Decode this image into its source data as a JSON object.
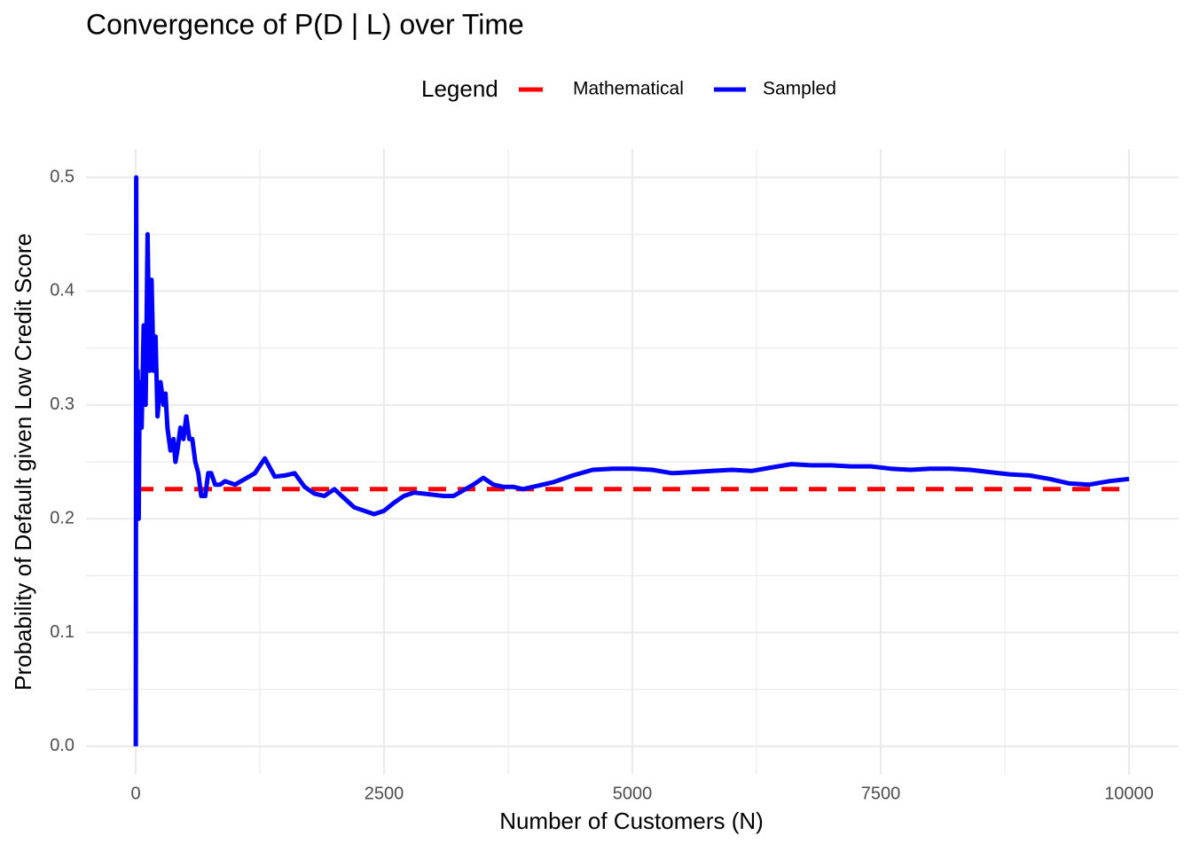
{
  "chart_data": {
    "type": "line",
    "title": "Convergence of P(D | L) over Time",
    "x_label": "Number of Customers (N)",
    "y_label": "Probability of Default given Low Credit Score",
    "legend_title": "Legend",
    "legend_position": "top",
    "grid": true,
    "xlim": [
      -500,
      10500
    ],
    "ylim": [
      -0.025,
      0.525
    ],
    "xticks": [
      0,
      2500,
      5000,
      7500,
      10000
    ],
    "yticks": [
      {
        "value": 0,
        "label": "0.0"
      },
      0.1,
      0.2,
      0.3,
      0.4,
      0.5
    ],
    "series": [
      {
        "name": "Mathematical",
        "color": "#ff0000",
        "linetype": "dashed",
        "x": [
          0,
          10000
        ],
        "values": [
          0.226,
          0.226
        ]
      },
      {
        "name": "Sampled",
        "color": "#0000ff",
        "linetype": "solid",
        "x": [
          1,
          5,
          10,
          20,
          30,
          40,
          60,
          80,
          100,
          120,
          140,
          160,
          180,
          200,
          220,
          250,
          280,
          300,
          320,
          350,
          380,
          400,
          420,
          450,
          480,
          510,
          540,
          570,
          600,
          630,
          660,
          700,
          730,
          760,
          800,
          850,
          900,
          1000,
          1100,
          1200,
          1300,
          1400,
          1500,
          1600,
          1700,
          1800,
          1900,
          2000,
          2100,
          2200,
          2300,
          2400,
          2500,
          2600,
          2700,
          2800,
          2900,
          3000,
          3100,
          3200,
          3300,
          3400,
          3500,
          3600,
          3700,
          3800,
          3900,
          4000,
          4200,
          4400,
          4600,
          4800,
          5000,
          5200,
          5400,
          5600,
          5800,
          6000,
          6200,
          6400,
          6600,
          6800,
          7000,
          7200,
          7400,
          7600,
          7800,
          8000,
          8200,
          8400,
          8600,
          8800,
          9000,
          9200,
          9400,
          9600,
          9800,
          10000
        ],
        "values": [
          0,
          0.5,
          0.2,
          0.33,
          0.2,
          0.32,
          0.28,
          0.37,
          0.3,
          0.45,
          0.33,
          0.41,
          0.33,
          0.36,
          0.29,
          0.32,
          0.3,
          0.31,
          0.28,
          0.26,
          0.27,
          0.25,
          0.26,
          0.28,
          0.27,
          0.29,
          0.27,
          0.27,
          0.25,
          0.24,
          0.22,
          0.22,
          0.24,
          0.24,
          0.23,
          0.23,
          0.233,
          0.23,
          0.235,
          0.24,
          0.253,
          0.237,
          0.238,
          0.24,
          0.228,
          0.222,
          0.22,
          0.226,
          0.218,
          0.21,
          0.207,
          0.204,
          0.207,
          0.214,
          0.22,
          0.223,
          0.222,
          0.221,
          0.22,
          0.22,
          0.225,
          0.23,
          0.236,
          0.23,
          0.228,
          0.228,
          0.226,
          0.228,
          0.232,
          0.238,
          0.243,
          0.244,
          0.244,
          0.243,
          0.24,
          0.241,
          0.242,
          0.243,
          0.242,
          0.245,
          0.248,
          0.247,
          0.247,
          0.246,
          0.246,
          0.244,
          0.243,
          0.244,
          0.244,
          0.243,
          0.241,
          0.239,
          0.238,
          0.235,
          0.231,
          0.23,
          0.233,
          0.235
        ]
      }
    ]
  }
}
